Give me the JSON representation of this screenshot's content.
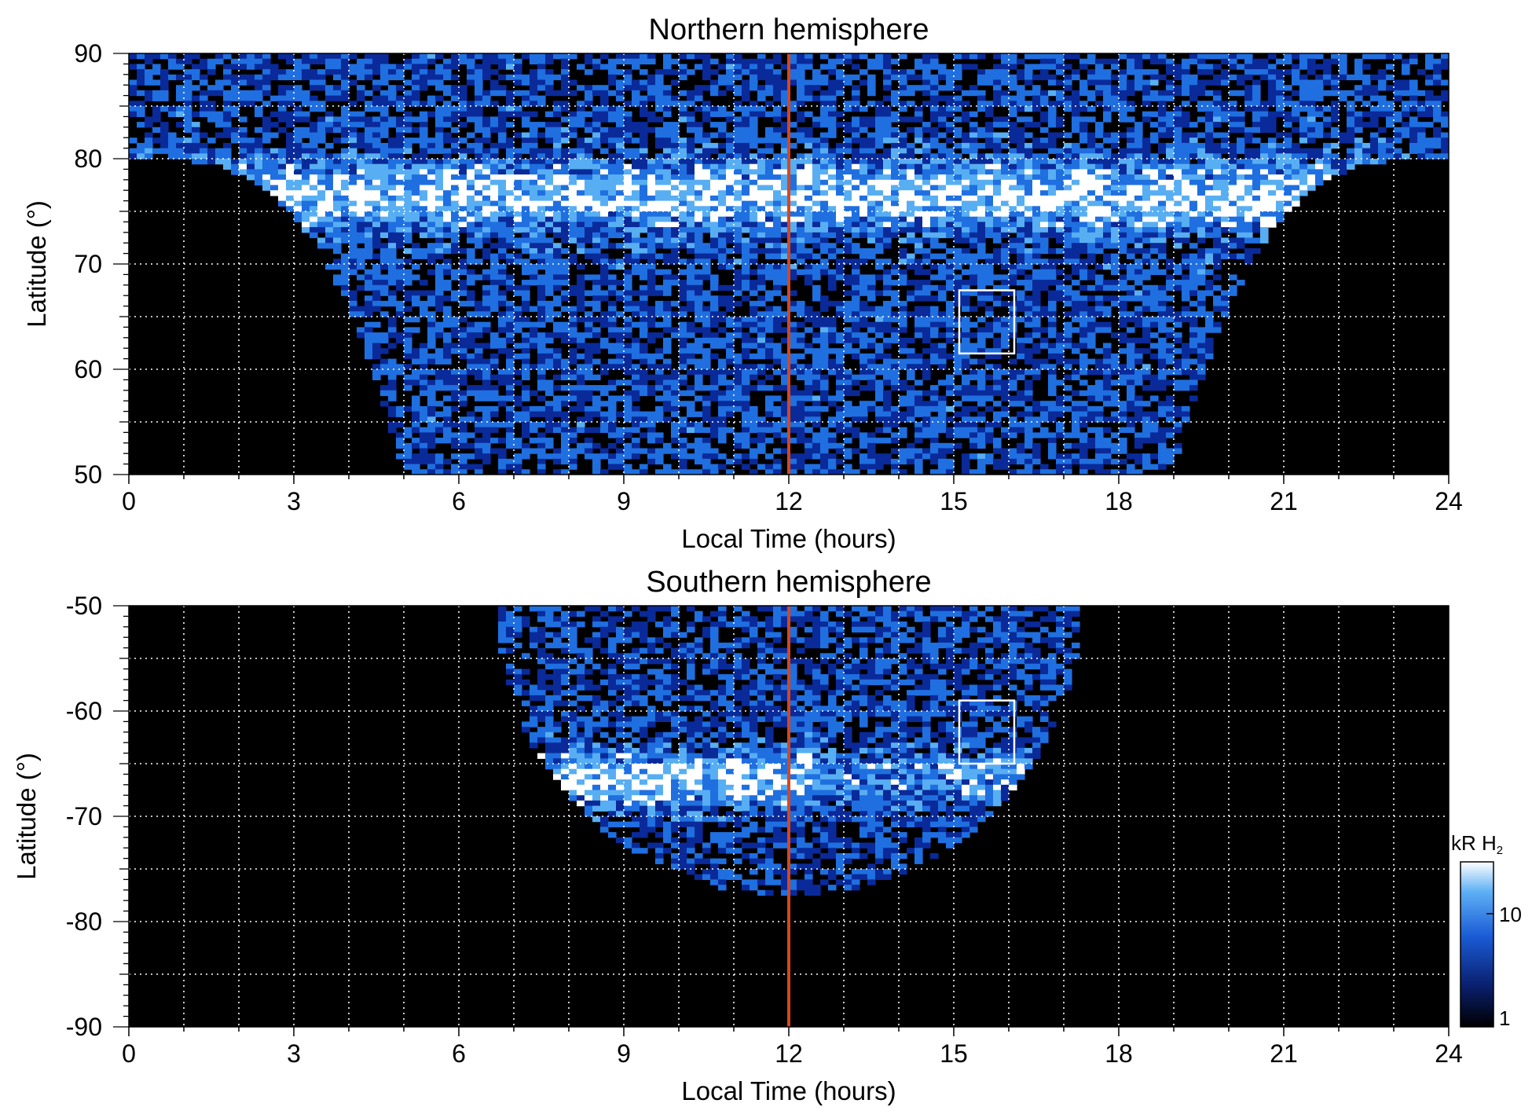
{
  "chart_data": [
    {
      "type": "heatmap",
      "title": "Northern hemisphere",
      "xlabel": "Local Time (hours)",
      "ylabel": "Latitude (°)",
      "xlim": [
        0,
        24
      ],
      "ylim": [
        50,
        90
      ],
      "xticks": [
        "0",
        "3",
        "6",
        "9",
        "12",
        "15",
        "18",
        "21",
        "24"
      ],
      "yticks": [
        "50",
        "60",
        "70",
        "80",
        "90"
      ],
      "grid": true,
      "noon_line": {
        "x": 12,
        "color": "#d9451c"
      },
      "highlight_box": {
        "x": [
          15.1,
          16.1
        ],
        "y": [
          61.5,
          67.5
        ],
        "color": "#ffffff"
      },
      "coverage": "local time band narrowing from 0-24 h above 80° to about 5-19 h at 50°; brightest emission near 75-80° latitude",
      "colorscale": [
        "#000000",
        "#0a2a9a",
        "#1f6fe0",
        "#58aef2",
        "#ffffff"
      ]
    },
    {
      "type": "heatmap",
      "title": "Southern hemisphere",
      "xlabel": "Local Time (hours)",
      "ylabel": "Latitude (°)",
      "xlim": [
        0,
        24
      ],
      "ylim": [
        -90,
        -50
      ],
      "xticks": [
        "0",
        "3",
        "6",
        "9",
        "12",
        "15",
        "18",
        "21",
        "24"
      ],
      "yticks": [
        "-90",
        "-80",
        "-70",
        "-60",
        "-50"
      ],
      "grid": true,
      "noon_line": {
        "x": 12,
        "color": "#d9451c"
      },
      "highlight_box": {
        "x": [
          15.1,
          16.1
        ],
        "y": [
          -65,
          -59
        ],
        "color": "#ffffff"
      },
      "coverage": "half-disc centred on local noon, about 7-17 h at -50° down to about -78° near noon; brightest emission near -65 to -68° latitude",
      "colorscale": [
        "#000000",
        "#0a2a9a",
        "#1f6fe0",
        "#58aef2",
        "#ffffff"
      ]
    }
  ],
  "colorbar": {
    "label": "kR H",
    "label_sub": "2",
    "scale": "log",
    "ticks": [
      "1",
      "10"
    ],
    "colors": [
      "#000000",
      "#0a1f6e",
      "#1a5cd6",
      "#5fb0f5",
      "#ffffff"
    ]
  }
}
